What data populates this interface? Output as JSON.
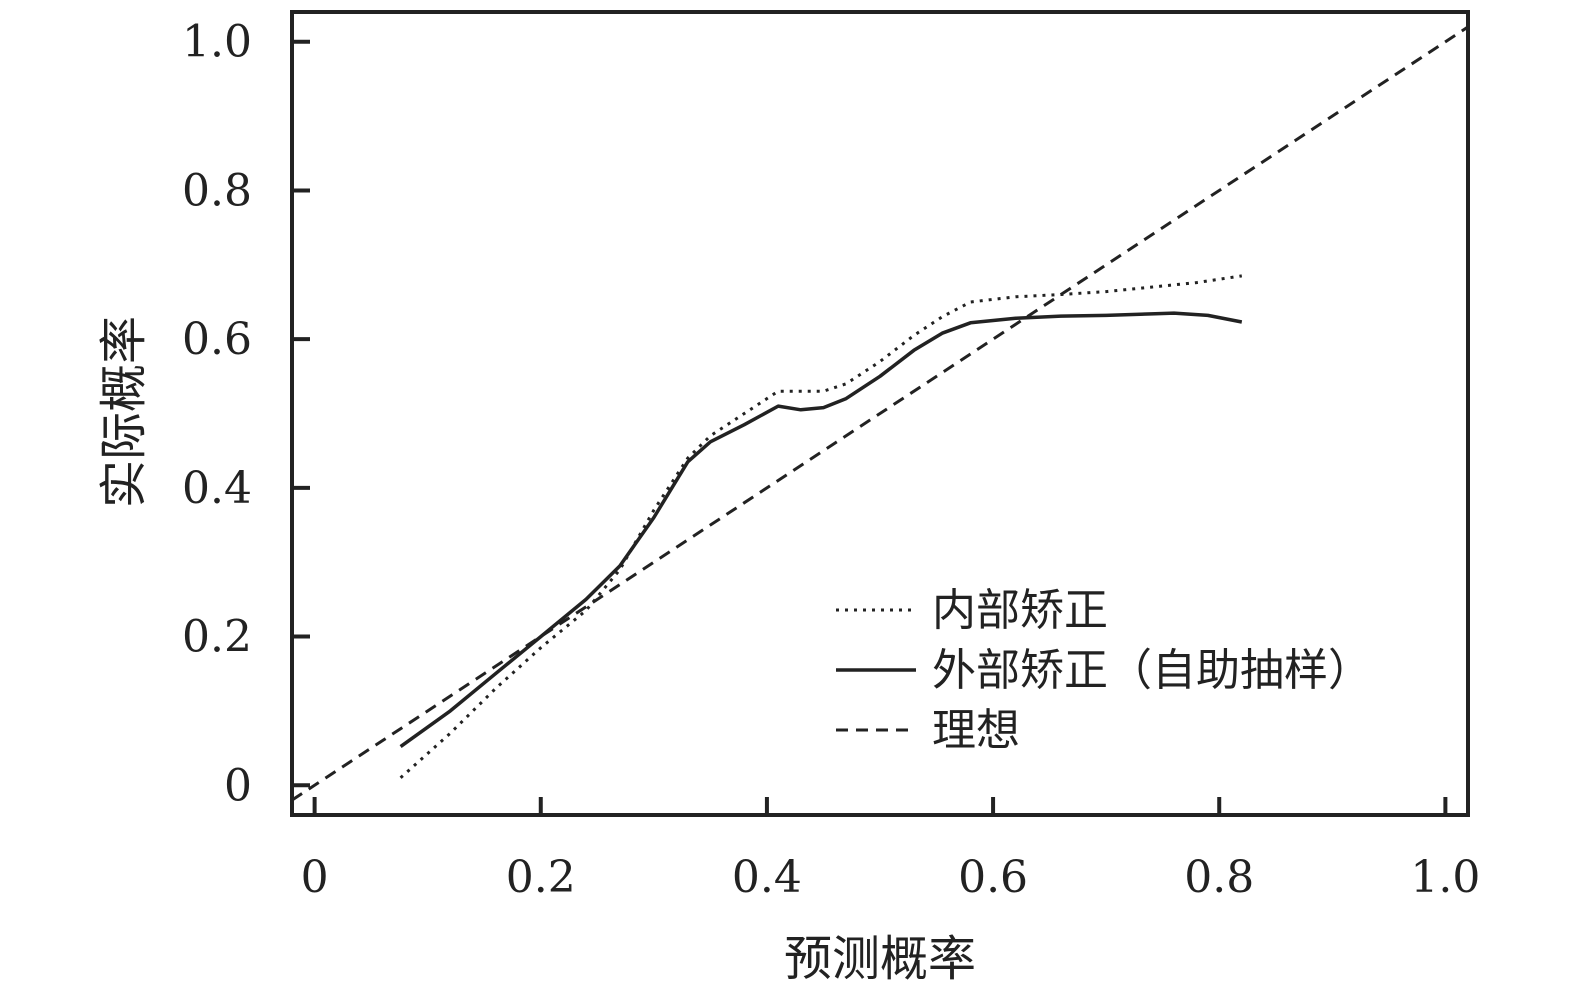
{
  "chart_data": {
    "type": "line",
    "xlabel": "预测概率",
    "ylabel": "实际概率",
    "xlim": [
      -0.02,
      1.02
    ],
    "ylim": [
      -0.04,
      1.04
    ],
    "xticks": [
      {
        "value": 0,
        "label": "0"
      },
      {
        "value": 0.2,
        "label": "0.2"
      },
      {
        "value": 0.4,
        "label": "0.4"
      },
      {
        "value": 0.6,
        "label": "0.6"
      },
      {
        "value": 0.8,
        "label": "0.8"
      },
      {
        "value": 1.0,
        "label": "1.0"
      }
    ],
    "yticks": [
      {
        "value": 0,
        "label": "0"
      },
      {
        "value": 0.2,
        "label": "0.2"
      },
      {
        "value": 0.4,
        "label": "0.4"
      },
      {
        "value": 0.6,
        "label": "0.6"
      },
      {
        "value": 0.8,
        "label": "0.8"
      },
      {
        "value": 1.0,
        "label": "1.0"
      }
    ],
    "grid": false,
    "legend_position": "bottom-right",
    "series": [
      {
        "name": "内部矫正",
        "style": "dotted",
        "x": [
          0.076,
          0.12,
          0.16,
          0.2,
          0.24,
          0.27,
          0.3,
          0.33,
          0.35,
          0.38,
          0.41,
          0.45,
          0.47,
          0.5,
          0.53,
          0.555,
          0.58,
          0.62,
          0.66,
          0.7,
          0.74,
          0.78,
          0.82
        ],
        "y": [
          0.01,
          0.07,
          0.13,
          0.185,
          0.235,
          0.29,
          0.37,
          0.44,
          0.47,
          0.5,
          0.53,
          0.53,
          0.54,
          0.57,
          0.605,
          0.63,
          0.65,
          0.657,
          0.66,
          0.664,
          0.67,
          0.676,
          0.685
        ]
      },
      {
        "name": "外部矫正（自助抽样）",
        "style": "solid",
        "x": [
          0.076,
          0.12,
          0.16,
          0.2,
          0.24,
          0.27,
          0.3,
          0.33,
          0.35,
          0.38,
          0.41,
          0.43,
          0.45,
          0.47,
          0.5,
          0.53,
          0.555,
          0.58,
          0.62,
          0.66,
          0.7,
          0.74,
          0.76,
          0.79,
          0.82
        ],
        "y": [
          0.052,
          0.1,
          0.15,
          0.2,
          0.25,
          0.295,
          0.36,
          0.435,
          0.462,
          0.485,
          0.51,
          0.505,
          0.508,
          0.52,
          0.55,
          0.585,
          0.608,
          0.622,
          0.628,
          0.631,
          0.632,
          0.634,
          0.635,
          0.632,
          0.623
        ]
      },
      {
        "name": "理想",
        "style": "dashed",
        "x": [
          -0.02,
          1.02
        ],
        "y": [
          -0.02,
          1.02
        ]
      }
    ]
  }
}
